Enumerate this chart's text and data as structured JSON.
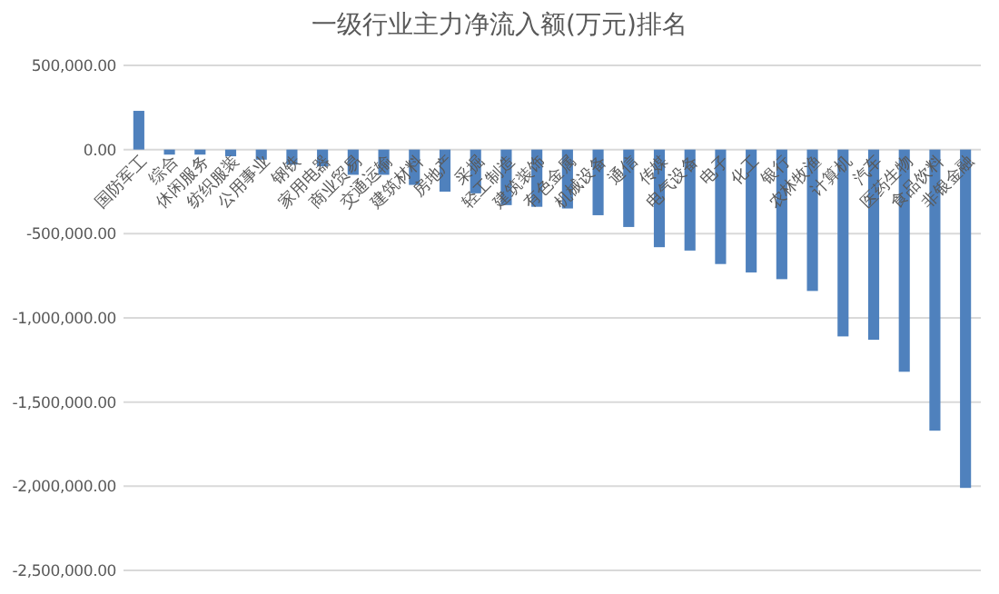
{
  "chart_data": {
    "type": "bar",
    "title": "一级行业主力净流入额(万元)排名",
    "categories": [
      "国防军工",
      "综合",
      "休闲服务",
      "纺织服装",
      "公用事业",
      "钢铁",
      "家用电器",
      "商业贸易",
      "交通运输",
      "建筑材料",
      "房地产",
      "采掘",
      "轻工制造",
      "建筑装饰",
      "有色金属",
      "机械设备",
      "通信",
      "传媒",
      "电气设备",
      "电子",
      "化工",
      "银行",
      "农林牧渔",
      "计算机",
      "汽车",
      "医药生物",
      "食品饮料",
      "非银金融"
    ],
    "values": [
      230000,
      -30000,
      -30000,
      -40000,
      -60000,
      -90000,
      -100000,
      -150000,
      -150000,
      -210000,
      -250000,
      -260000,
      -330000,
      -340000,
      -350000,
      -390000,
      -460000,
      -580000,
      -600000,
      -680000,
      -730000,
      -770000,
      -840000,
      -1110000,
      -1130000,
      -1320000,
      -1670000,
      -2010000
    ],
    "color": "#4f81bd",
    "ylim": [
      -2500000,
      500000
    ],
    "yticks": [
      {
        "value": 500000,
        "label": "500,000.00"
      },
      {
        "value": 0,
        "label": "0.00"
      },
      {
        "value": -500000,
        "label": "-500,000.00"
      },
      {
        "value": -1000000,
        "label": "-1,000,000.00"
      },
      {
        "value": -1500000,
        "label": "-1,500,000.00"
      },
      {
        "value": -2000000,
        "label": "-2,000,000.00"
      },
      {
        "value": -2500000,
        "label": "-2,500,000.00"
      }
    ],
    "grid": "y"
  }
}
